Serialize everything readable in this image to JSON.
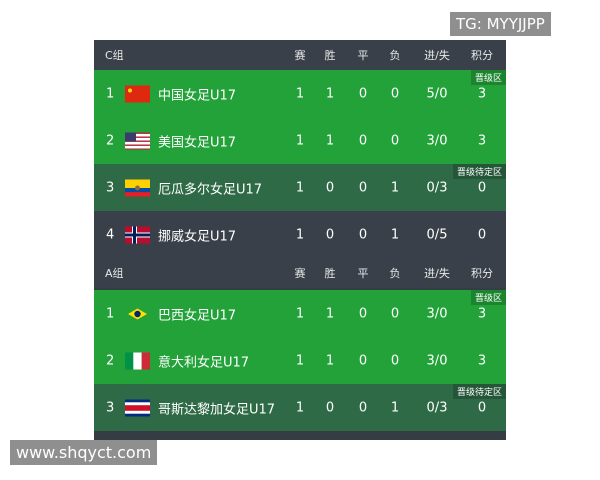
{
  "columns": [
    "赛",
    "胜",
    "平",
    "负",
    "进/失",
    "积分"
  ],
  "groups": [
    {
      "name": "C组",
      "rows": [
        {
          "rank": "1",
          "flag": "china-flag",
          "team": "中国女足U17",
          "p": "1",
          "w": "1",
          "d": "0",
          "l": "0",
          "gf_ga": "5/0",
          "pts": "3",
          "zone": "晋级区"
        },
        {
          "rank": "2",
          "flag": "usa-flag",
          "team": "美国女足U17",
          "p": "1",
          "w": "1",
          "d": "0",
          "l": "0",
          "gf_ga": "3/0",
          "pts": "3",
          "zone": ""
        },
        {
          "rank": "3",
          "flag": "ecuador-flag",
          "team": "厄瓜多尔女足U17",
          "p": "1",
          "w": "0",
          "d": "0",
          "l": "1",
          "gf_ga": "0/3",
          "pts": "0",
          "zone": "晋级待定区"
        },
        {
          "rank": "4",
          "flag": "norway-flag",
          "team": "挪威女足U17",
          "p": "1",
          "w": "0",
          "d": "0",
          "l": "1",
          "gf_ga": "0/5",
          "pts": "0",
          "zone": ""
        }
      ]
    },
    {
      "name": "A组",
      "rows": [
        {
          "rank": "1",
          "flag": "brazil-flag",
          "team": "巴西女足U17",
          "p": "1",
          "w": "1",
          "d": "0",
          "l": "0",
          "gf_ga": "3/0",
          "pts": "3",
          "zone": "晋级区"
        },
        {
          "rank": "2",
          "flag": "italy-flag",
          "team": "意大利女足U17",
          "p": "1",
          "w": "1",
          "d": "0",
          "l": "0",
          "gf_ga": "3/0",
          "pts": "3",
          "zone": ""
        },
        {
          "rank": "3",
          "flag": "costa-rica-flag",
          "team": "哥斯达黎加女足U17",
          "p": "1",
          "w": "0",
          "d": "0",
          "l": "1",
          "gf_ga": "0/3",
          "pts": "0",
          "zone": "晋级待定区"
        }
      ]
    }
  ],
  "colors": {
    "qualified": "#23a23a",
    "pending": "#2f6a46",
    "header": "#3a4049"
  },
  "watermarks": {
    "top": "TG: MYYJJPP",
    "bottom": "www.shqyct.com"
  }
}
